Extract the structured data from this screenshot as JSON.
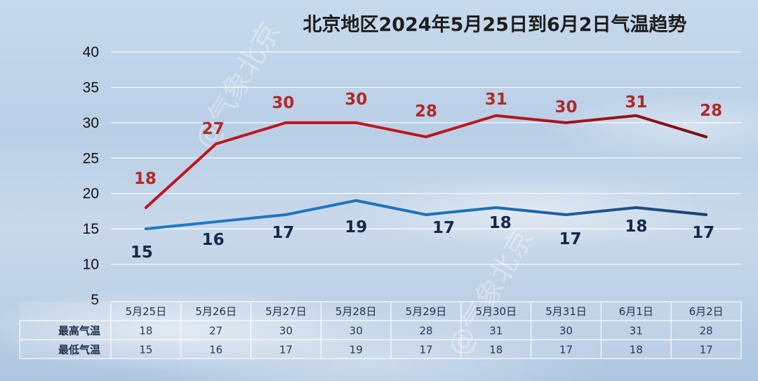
{
  "chart_data": {
    "type": "line",
    "title": "北京地区2024年5月25日到6月2日气温趋势",
    "categories": [
      "5月25日",
      "5月26日",
      "5月27日",
      "5月28日",
      "5月29日",
      "5月30日",
      "5月31日",
      "6月1日",
      "6月2日"
    ],
    "series": [
      {
        "name": "最高气温",
        "values": [
          18,
          27,
          30,
          30,
          28,
          31,
          30,
          31,
          28
        ],
        "color": "#c0141c",
        "color_end": "#7a1014"
      },
      {
        "name": "最低气温",
        "values": [
          15,
          16,
          17,
          19,
          17,
          18,
          17,
          18,
          17
        ],
        "color": "#1e7ac8",
        "color_end": "#1d3f6e"
      }
    ],
    "ylim": [
      5,
      40
    ],
    "yticks": [
      5,
      10,
      15,
      20,
      25,
      30,
      35,
      40
    ],
    "grid": true,
    "legend": "bottom-left table",
    "watermark": "@气象北京"
  }
}
